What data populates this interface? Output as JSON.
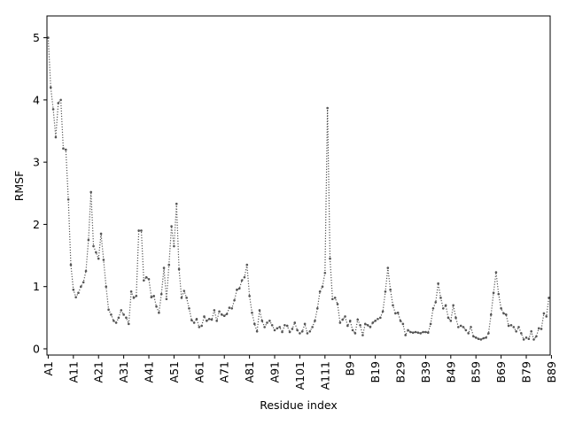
{
  "chart_data": {
    "type": "line",
    "xlabel": "Residue index",
    "ylabel": "RMSF",
    "ylim": [
      -0.1,
      5.35
    ],
    "yticks": [
      0,
      1,
      2,
      3,
      4,
      5
    ],
    "xtick_labels": [
      "A1",
      "A11",
      "A21",
      "A31",
      "A41",
      "A51",
      "A61",
      "A71",
      "A81",
      "A91",
      "A101",
      "A111",
      "B9",
      "B19",
      "B29",
      "B39",
      "B49",
      "B59",
      "B69",
      "B79",
      "B89"
    ],
    "xtick_positions": [
      0,
      10,
      20,
      30,
      40,
      50,
      60,
      70,
      80,
      90,
      100,
      110,
      120,
      130,
      140,
      150,
      160,
      170,
      180,
      190,
      200
    ],
    "series": [
      {
        "line_style": "dotted",
        "color": "#555555",
        "x_start": 0,
        "values": [
          5.0,
          4.2,
          3.85,
          3.4,
          3.95,
          4.0,
          3.22,
          3.2,
          2.4,
          1.35,
          0.95,
          0.83,
          0.9,
          1.0,
          1.07,
          1.25,
          1.75,
          2.52,
          1.65,
          1.55,
          1.45,
          1.85,
          1.43,
          1.0,
          0.63,
          0.55,
          0.45,
          0.42,
          0.5,
          0.62,
          0.55,
          0.5,
          0.4,
          0.92,
          0.82,
          0.85,
          1.9,
          1.9,
          1.1,
          1.15,
          1.12,
          0.83,
          0.85,
          0.68,
          0.58,
          0.88,
          1.3,
          0.8,
          1.35,
          1.97,
          1.65,
          2.33,
          1.28,
          0.82,
          0.93,
          0.82,
          0.65,
          0.46,
          0.42,
          0.48,
          0.35,
          0.37,
          0.52,
          0.45,
          0.48,
          0.47,
          0.62,
          0.45,
          0.6,
          0.55,
          0.53,
          0.56,
          0.66,
          0.65,
          0.78,
          0.95,
          0.97,
          1.1,
          1.15,
          1.35,
          0.85,
          0.58,
          0.4,
          0.28,
          0.62,
          0.45,
          0.35,
          0.42,
          0.45,
          0.38,
          0.3,
          0.33,
          0.35,
          0.27,
          0.38,
          0.37,
          0.27,
          0.32,
          0.42,
          0.3,
          0.25,
          0.28,
          0.4,
          0.25,
          0.28,
          0.35,
          0.45,
          0.65,
          0.92,
          1.0,
          1.22,
          3.87,
          1.45,
          0.8,
          0.82,
          0.72,
          0.42,
          0.47,
          0.52,
          0.37,
          0.45,
          0.3,
          0.25,
          0.47,
          0.38,
          0.22,
          0.4,
          0.38,
          0.35,
          0.42,
          0.45,
          0.48,
          0.5,
          0.6,
          0.92,
          1.3,
          0.95,
          0.7,
          0.57,
          0.58,
          0.45,
          0.4,
          0.22,
          0.3,
          0.27,
          0.26,
          0.27,
          0.26,
          0.25,
          0.27,
          0.27,
          0.26,
          0.4,
          0.65,
          0.75,
          1.05,
          0.82,
          0.65,
          0.7,
          0.5,
          0.45,
          0.7,
          0.5,
          0.35,
          0.37,
          0.35,
          0.3,
          0.25,
          0.35,
          0.2,
          0.18,
          0.16,
          0.15,
          0.17,
          0.18,
          0.25,
          0.55,
          0.9,
          1.23,
          0.88,
          0.65,
          0.57,
          0.55,
          0.37,
          0.38,
          0.35,
          0.28,
          0.35,
          0.25,
          0.15,
          0.18,
          0.16,
          0.28,
          0.15,
          0.2,
          0.33,
          0.32,
          0.57,
          0.52,
          0.82
        ]
      }
    ]
  }
}
